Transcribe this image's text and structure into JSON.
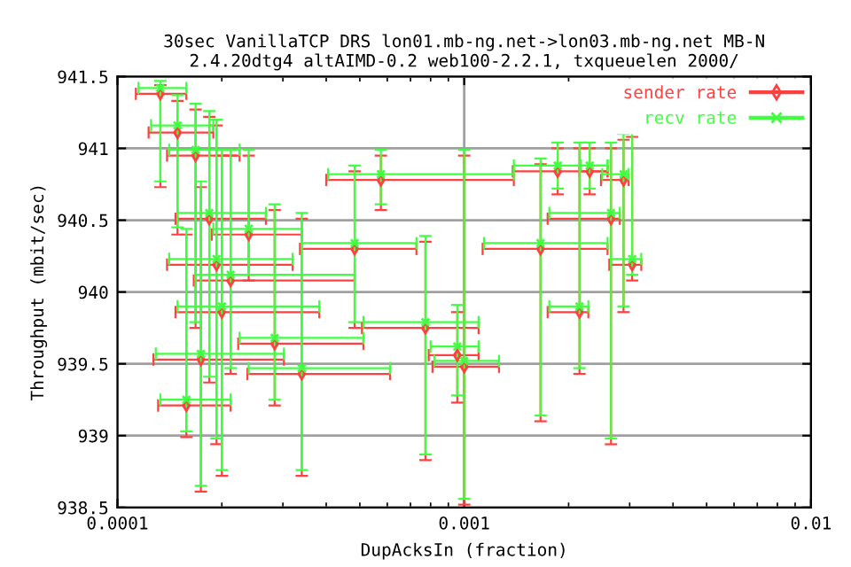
{
  "chart_data": {
    "type": "scatter",
    "title": "30sec VanillaTCP DRS lon01.mb-ng.net->lon03.mb-ng.net MB-N\n2.4.20dtg4 altAIMD-0.2 web100-2.2.1, txqueuelen 2000/",
    "xlabel": "DupAcksIn (fraction)",
    "ylabel": "Throughput (mbit/sec)",
    "log": "x",
    "xlim": [
      0.0001,
      0.01
    ],
    "xticks": [
      0.0001,
      0.001,
      0.01
    ],
    "ylim": [
      938.5,
      941.5
    ],
    "yticks": [
      938.5,
      939,
      939.5,
      940,
      940.5,
      941,
      941.5
    ],
    "grid": true,
    "legend": "top right",
    "series": [
      {
        "name": "sender rate",
        "color": "#ff4040",
        "marker": "diamond",
        "x": [
          0.000133,
          0.000149,
          0.000168,
          0.000184,
          0.000193,
          0.0002,
          0.000174,
          0.000158,
          0.000212,
          0.000239,
          0.000284,
          0.00034,
          0.000575,
          0.000483,
          0.000773,
          0.000955,
          0.00166,
          0.00186,
          0.0023,
          0.00215,
          0.00265,
          0.00288,
          0.00305,
          0.001
        ],
        "values": [
          941.38,
          941.11,
          940.95,
          940.51,
          940.19,
          939.86,
          939.53,
          939.21,
          940.08,
          940.4,
          939.64,
          939.43,
          940.78,
          940.3,
          939.75,
          939.56,
          940.3,
          940.84,
          940.84,
          939.86,
          940.51,
          940.78,
          940.19,
          939.48
        ],
        "errors": [
          [
            940.73,
            941.44
          ],
          [
            940.4,
            941.33
          ],
          [
            939.75,
            941.27
          ],
          [
            939.37,
            941.22
          ],
          [
            938.94,
            941.16
          ],
          [
            938.72,
            940.95
          ],
          [
            938.61,
            940.73
          ],
          [
            938.99,
            940.4
          ],
          [
            939.43,
            940.95
          ],
          [
            940.08,
            940.95
          ],
          [
            939.21,
            940.57
          ],
          [
            938.72,
            940.51
          ],
          [
            940.57,
            940.95
          ],
          [
            939.75,
            940.84
          ],
          [
            938.83,
            940.35
          ],
          [
            939.23,
            939.86
          ],
          [
            939.1,
            940.89
          ],
          [
            940.68,
            941.0
          ],
          [
            940.68,
            941.0
          ],
          [
            939.43,
            941.0
          ],
          [
            938.94,
            941.0
          ],
          [
            939.86,
            941.06
          ],
          [
            940.08,
            941.08
          ],
          [
            938.52,
            940.95
          ]
        ],
        "xerrors": [
          [
            0.000113,
            0.000158
          ],
          [
            0.000123,
            0.000189
          ],
          [
            0.000139,
            0.000225
          ],
          [
            0.000147,
            0.000268
          ],
          [
            0.000139,
            0.00032
          ],
          [
            0.000147,
            0.000382
          ],
          [
            0.000127,
            0.000302
          ],
          [
            0.000131,
            0.000212
          ],
          [
            0.000166,
            0.000483
          ],
          [
            0.000187,
            0.00034
          ],
          [
            0.000223,
            0.000512
          ],
          [
            0.000237,
            0.000611
          ],
          [
            0.0004,
            0.00139
          ],
          [
            0.000336,
            0.000728
          ],
          [
            0.000507,
            0.0011
          ],
          [
            0.00079,
            0.0011
          ],
          [
            0.00113,
            0.00259
          ],
          [
            0.00138,
            0.00259
          ],
          [
            0.00215,
            0.00259
          ],
          [
            0.00174,
            0.00228
          ],
          [
            0.00174,
            0.00281
          ],
          [
            0.00248,
            0.00298
          ],
          [
            0.00262,
            0.00324
          ],
          [
            0.00081,
            0.00126
          ]
        ]
      },
      {
        "name": "recv rate",
        "color": "#40ff40",
        "marker": "cross",
        "x": [
          0.000133,
          0.000149,
          0.000168,
          0.000184,
          0.000193,
          0.0002,
          0.000174,
          0.000158,
          0.000212,
          0.000239,
          0.000284,
          0.00034,
          0.000575,
          0.000483,
          0.000773,
          0.000955,
          0.00166,
          0.00186,
          0.0023,
          0.00215,
          0.00265,
          0.00288,
          0.00305,
          0.001
        ],
        "values": [
          941.42,
          941.16,
          940.99,
          940.55,
          940.23,
          939.9,
          939.57,
          939.25,
          940.12,
          940.44,
          939.68,
          939.47,
          940.82,
          940.34,
          939.79,
          939.62,
          940.34,
          940.88,
          940.88,
          939.9,
          940.55,
          940.82,
          940.23,
          939.52
        ],
        "errors": [
          [
            940.77,
            941.47
          ],
          [
            940.45,
            941.37
          ],
          [
            939.79,
            941.31
          ],
          [
            939.41,
            941.26
          ],
          [
            938.98,
            941.2
          ],
          [
            938.76,
            940.99
          ],
          [
            938.65,
            940.77
          ],
          [
            939.03,
            940.44
          ],
          [
            939.47,
            940.99
          ],
          [
            940.12,
            940.99
          ],
          [
            939.25,
            940.61
          ],
          [
            938.76,
            940.55
          ],
          [
            940.61,
            940.99
          ],
          [
            939.79,
            940.88
          ],
          [
            938.87,
            940.39
          ],
          [
            939.28,
            939.91
          ],
          [
            939.14,
            940.93
          ],
          [
            940.72,
            941.04
          ],
          [
            940.72,
            941.04
          ],
          [
            939.47,
            941.04
          ],
          [
            938.98,
            941.04
          ],
          [
            939.9,
            941.1
          ],
          [
            940.12,
            941.12
          ],
          [
            938.56,
            940.99
          ]
        ],
        "xerrors": [
          [
            0.000115,
            0.000158
          ],
          [
            0.000125,
            0.000189
          ],
          [
            0.000141,
            0.000225
          ],
          [
            0.000149,
            0.000268
          ],
          [
            0.000141,
            0.00032
          ],
          [
            0.000149,
            0.000382
          ],
          [
            0.000129,
            0.000302
          ],
          [
            0.000133,
            0.000212
          ],
          [
            0.000168,
            0.000483
          ],
          [
            0.000189,
            0.00034
          ],
          [
            0.000225,
            0.000512
          ],
          [
            0.000239,
            0.000611
          ],
          [
            0.000405,
            0.00139
          ],
          [
            0.00034,
            0.000728
          ],
          [
            0.000512,
            0.0011
          ],
          [
            0.0008,
            0.0011
          ],
          [
            0.00114,
            0.00259
          ],
          [
            0.00139,
            0.00259
          ],
          [
            0.00217,
            0.00259
          ],
          [
            0.00176,
            0.00228
          ],
          [
            0.00176,
            0.00281
          ],
          [
            0.0025,
            0.00298
          ],
          [
            0.00265,
            0.00324
          ],
          [
            0.00082,
            0.00126
          ]
        ]
      }
    ]
  }
}
